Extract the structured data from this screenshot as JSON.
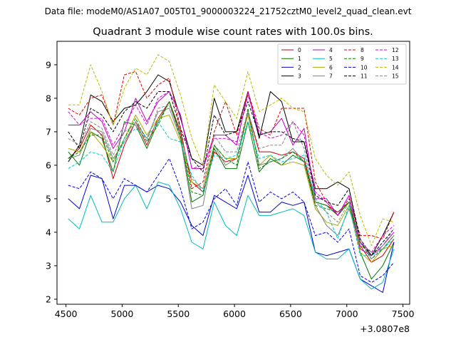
{
  "chart_data": {
    "type": "line",
    "suptitle": "Data file: modeM0/AS1A07_005T01_9000003224_21752cztM0_level2_quad_clean.evt",
    "title": "Quadrant 3 module wise count rates with 100.0s bins.",
    "xlabel": "",
    "ylabel": "",
    "x_offset_label": "+3.0807e8",
    "xlim": [
      4420,
      7560
    ],
    "ylim": [
      1.85,
      9.7
    ],
    "xticks": [
      4500,
      5000,
      5500,
      6000,
      6500,
      7000,
      7500
    ],
    "yticks": [
      2,
      3,
      4,
      5,
      6,
      7,
      8,
      9
    ],
    "x": [
      4520,
      4620,
      4720,
      4820,
      4920,
      5020,
      5120,
      5220,
      5320,
      5420,
      5520,
      5620,
      5720,
      5820,
      5920,
      6020,
      6120,
      6220,
      6320,
      6420,
      6520,
      6620,
      6720,
      6820,
      6920,
      7020,
      7120,
      7220,
      7320,
      7420
    ],
    "legend": {
      "location": "upper right",
      "columns": 4
    },
    "series": [
      {
        "name": "0",
        "color": "#cc0000",
        "dash": "solid",
        "values": [
          6.2,
          6.5,
          7.2,
          6.9,
          5.6,
          6.6,
          7.3,
          6.6,
          7.4,
          7.9,
          7.0,
          5.5,
          5.2,
          6.4,
          6.1,
          6.2,
          7.6,
          6.4,
          6.4,
          6.3,
          6.4,
          6.2,
          4.9,
          4.8,
          4.6,
          4.9,
          3.6,
          3.1,
          3.3,
          3.8
        ]
      },
      {
        "name": "1",
        "color": "#007700",
        "dash": "solid",
        "values": [
          6.4,
          6.0,
          7.0,
          6.8,
          5.8,
          7.3,
          7.2,
          6.5,
          7.3,
          7.9,
          6.9,
          4.9,
          5.1,
          6.5,
          5.9,
          5.9,
          7.3,
          5.8,
          6.2,
          6.0,
          6.3,
          6.1,
          4.9,
          4.8,
          4.5,
          4.9,
          3.4,
          2.6,
          3.0,
          3.7
        ]
      },
      {
        "name": "2",
        "color": "#0000cc",
        "dash": "solid",
        "values": [
          5.0,
          4.7,
          5.7,
          5.6,
          4.4,
          5.4,
          5.4,
          5.2,
          5.4,
          5.3,
          4.9,
          4.2,
          3.9,
          5.1,
          4.9,
          4.7,
          5.7,
          4.6,
          4.6,
          4.9,
          4.8,
          4.9,
          3.4,
          3.3,
          3.4,
          3.5,
          2.6,
          2.4,
          2.2,
          3.7
        ]
      },
      {
        "name": "3",
        "color": "#000000",
        "dash": "solid",
        "values": [
          6.1,
          6.6,
          8.1,
          7.9,
          7.3,
          7.7,
          7.8,
          8.2,
          8.7,
          8.5,
          7.4,
          6.2,
          6.0,
          8.0,
          7.0,
          7.0,
          8.2,
          6.8,
          8.2,
          7.9,
          6.7,
          6.7,
          5.3,
          5.3,
          5.5,
          5.3,
          3.7,
          3.3,
          3.9,
          4.6
        ]
      },
      {
        "name": "4",
        "color": "#bb00bb",
        "dash": "solid",
        "values": [
          7.2,
          7.2,
          7.6,
          7.3,
          6.5,
          7.0,
          8.0,
          7.3,
          7.9,
          8.2,
          7.5,
          5.9,
          5.9,
          6.9,
          6.9,
          6.6,
          8.2,
          6.9,
          7.0,
          7.4,
          6.6,
          7.1,
          5.0,
          5.0,
          4.5,
          5.1,
          3.5,
          3.3,
          3.6,
          4.0
        ]
      },
      {
        "name": "5",
        "color": "#00bbbb",
        "dash": "solid",
        "values": [
          4.4,
          4.1,
          5.1,
          4.3,
          4.3,
          5.0,
          5.4,
          4.7,
          5.5,
          5.4,
          4.7,
          3.7,
          3.5,
          4.9,
          4.2,
          3.9,
          5.1,
          4.5,
          4.5,
          4.6,
          4.7,
          4.5,
          3.4,
          3.2,
          3.2,
          3.5,
          2.6,
          2.3,
          2.5,
          3.5
        ]
      },
      {
        "name": "6",
        "color": "#aaaa00",
        "dash": "solid",
        "values": [
          6.5,
          6.4,
          7.0,
          6.6,
          6.1,
          6.8,
          7.5,
          6.9,
          7.4,
          7.5,
          6.7,
          5.5,
          5.3,
          6.6,
          6.2,
          6.2,
          7.5,
          6.0,
          6.3,
          6.0,
          6.1,
          6.0,
          4.7,
          4.3,
          4.2,
          4.8,
          3.4,
          3.1,
          3.5,
          3.6
        ]
      },
      {
        "name": "7",
        "color": "#808080",
        "dash": "solid",
        "values": [
          6.2,
          6.3,
          7.1,
          7.0,
          6.2,
          6.7,
          7.3,
          6.8,
          7.6,
          7.7,
          6.8,
          4.7,
          4.8,
          6.6,
          6.0,
          6.2,
          7.6,
          6.0,
          6.1,
          6.2,
          6.5,
          6.1,
          4.8,
          4.2,
          3.9,
          4.7,
          3.6,
          3.4,
          3.5,
          3.9
        ]
      },
      {
        "name": "8",
        "color": "#dd0000",
        "dash": "dashed",
        "values": [
          7.7,
          7.5,
          8.0,
          8.1,
          7.2,
          8.7,
          8.8,
          8.0,
          8.4,
          8.6,
          7.1,
          5.3,
          5.5,
          7.0,
          7.9,
          6.9,
          8.2,
          7.1,
          6.9,
          7.7,
          7.7,
          7.7,
          5.5,
          4.9,
          4.5,
          5.0,
          3.9,
          3.9,
          3.8,
          4.6
        ]
      },
      {
        "name": "9",
        "color": "#008800",
        "dash": "dashed",
        "values": [
          6.2,
          6.4,
          6.9,
          6.9,
          6.1,
          6.8,
          7.4,
          6.7,
          7.2,
          7.9,
          6.8,
          5.2,
          5.1,
          6.6,
          6.2,
          6.0,
          7.7,
          5.9,
          6.1,
          6.2,
          6.4,
          6.1,
          4.8,
          4.7,
          4.6,
          4.9,
          3.7,
          3.2,
          3.5,
          3.9
        ]
      },
      {
        "name": "10",
        "color": "#0000dd",
        "dash": "dashed",
        "values": [
          5.4,
          5.3,
          5.8,
          5.6,
          5.0,
          5.6,
          5.4,
          5.2,
          5.7,
          6.2,
          5.3,
          4.1,
          4.3,
          5.0,
          5.3,
          4.8,
          6.1,
          4.9,
          5.2,
          5.0,
          5.2,
          4.9,
          3.9,
          4.0,
          3.7,
          4.1,
          2.7,
          2.5,
          2.7,
          3.1
        ]
      },
      {
        "name": "11",
        "color": "#000000",
        "dash": "dashed",
        "values": [
          7.0,
          6.5,
          7.7,
          7.5,
          7.0,
          7.6,
          7.9,
          7.7,
          8.2,
          8.2,
          7.1,
          6.2,
          5.8,
          7.5,
          6.9,
          7.0,
          7.9,
          6.9,
          7.0,
          7.0,
          6.8,
          6.7,
          5.1,
          4.9,
          4.8,
          5.3,
          3.8,
          3.3,
          3.7,
          4.1
        ]
      },
      {
        "name": "12",
        "color": "#dd00dd",
        "dash": "dashed",
        "values": [
          7.6,
          7.2,
          7.4,
          7.4,
          6.6,
          7.2,
          7.8,
          7.2,
          8.0,
          8.2,
          7.5,
          5.9,
          6.0,
          6.8,
          6.8,
          6.7,
          8.1,
          7.0,
          6.8,
          6.9,
          7.3,
          6.9,
          5.2,
          4.9,
          4.5,
          5.1,
          3.7,
          3.4,
          3.9,
          4.2
        ]
      },
      {
        "name": "13",
        "color": "#00cccc",
        "dash": "dashed",
        "values": [
          5.9,
          6.1,
          6.4,
          6.3,
          5.8,
          6.8,
          7.1,
          6.8,
          7.3,
          6.8,
          6.7,
          5.7,
          5.2,
          6.3,
          6.2,
          6.3,
          7.3,
          6.2,
          6.3,
          6.1,
          6.2,
          6.3,
          5.0,
          4.6,
          3.8,
          4.8,
          3.3,
          3.3,
          3.5,
          3.8
        ]
      },
      {
        "name": "14",
        "color": "#bbbb00",
        "dash": "dashed",
        "values": [
          7.8,
          7.8,
          9.0,
          8.2,
          7.2,
          8.3,
          8.9,
          8.7,
          9.3,
          9.1,
          8.1,
          6.8,
          6.0,
          8.4,
          7.9,
          7.4,
          8.8,
          7.6,
          7.8,
          8.0,
          7.7,
          7.6,
          6.2,
          5.7,
          5.4,
          5.8,
          4.5,
          3.6,
          4.4,
          4.3
        ]
      },
      {
        "name": "15",
        "color": "#888888",
        "dash": "dashed",
        "values": [
          6.8,
          6.6,
          7.3,
          7.1,
          6.3,
          7.0,
          7.2,
          6.7,
          7.7,
          7.8,
          6.9,
          5.6,
          5.3,
          6.9,
          6.4,
          6.4,
          7.6,
          6.5,
          6.6,
          6.6,
          7.3,
          6.5,
          4.9,
          4.6,
          4.3,
          4.9,
          3.8,
          3.2,
          3.6,
          4.1
        ]
      }
    ]
  }
}
